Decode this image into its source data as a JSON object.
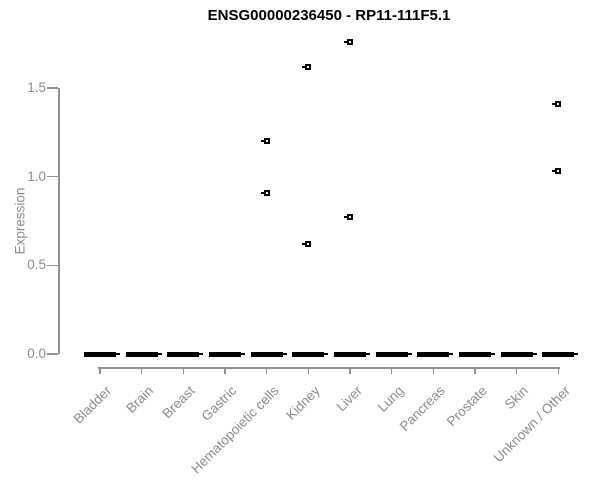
{
  "title": "ENSG00000236450 - RP11-111F5.1",
  "chart_data": {
    "type": "boxplot",
    "title": "ENSG00000236450 - RP11-111F5.1",
    "xlabel": "",
    "ylabel": "Expression",
    "categories": [
      "Bladder",
      "Brain",
      "Breast",
      "Gastric",
      "Hematopoietic cells",
      "Kidney",
      "Liver",
      "Lung",
      "Pancreas",
      "Prostate",
      "Skin",
      "Unknown / Other"
    ],
    "medians": [
      0,
      0,
      0,
      0,
      0,
      0,
      0,
      0,
      0,
      0,
      0,
      0
    ],
    "boxes_collapsed_at_zero": true,
    "outliers": [
      {
        "category": "Hematopoietic cells",
        "values": [
          1.2,
          0.91
        ]
      },
      {
        "category": "Kidney",
        "values": [
          1.62,
          0.62
        ]
      },
      {
        "category": "Liver",
        "values": [
          1.76,
          0.77
        ]
      },
      {
        "category": "Unknown / Other",
        "values": [
          1.41,
          1.03
        ]
      }
    ],
    "y_ticks": [
      {
        "value": 0.0,
        "label": "0.0"
      },
      {
        "value": 0.5,
        "label": "0.5"
      },
      {
        "value": 1.0,
        "label": "1.0"
      },
      {
        "value": 1.5,
        "label": "1.5"
      }
    ],
    "ylim": [
      0,
      1.8
    ],
    "grid": false,
    "legend": "none",
    "colors": {
      "title": "#000000",
      "data": "#000000",
      "axis_line": "#909090",
      "axis_text": "#8c8c8c",
      "background": "#ffffff"
    }
  }
}
